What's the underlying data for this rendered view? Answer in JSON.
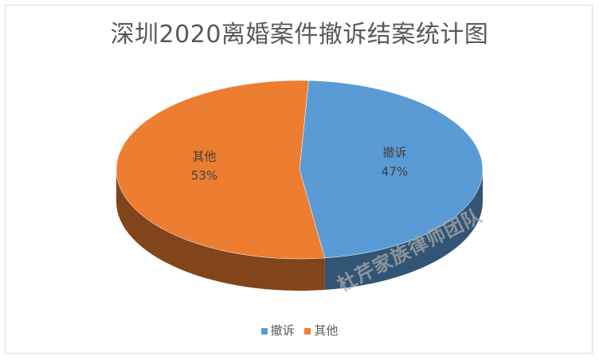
{
  "chart_data": {
    "type": "pie",
    "title": "深圳2020离婚案件撤诉结案统计图",
    "series": [
      {
        "name": "撤诉",
        "value": 47,
        "label": "47%",
        "color": "#5b9bd5"
      },
      {
        "name": "其他",
        "value": 53,
        "label": "53%",
        "color": "#ed7d31"
      }
    ],
    "legend_position": "bottom",
    "three_d": true
  },
  "watermark": "杜芹家族律师团队"
}
